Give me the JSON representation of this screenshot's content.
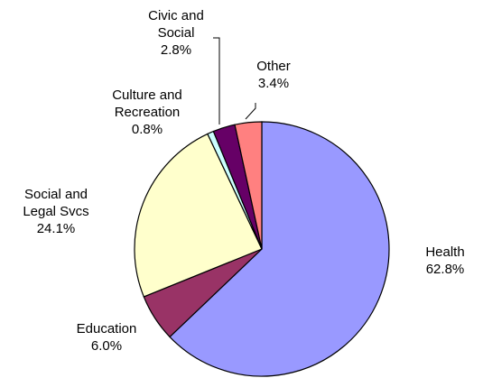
{
  "chart_data": {
    "type": "pie",
    "categories": [
      "Health",
      "Education",
      "Social and Legal Svcs",
      "Culture and Recreation",
      "Civic and Social",
      "Other"
    ],
    "values": [
      62.8,
      6.0,
      24.1,
      0.8,
      2.8,
      3.4
    ],
    "value_labels": [
      "62.8%",
      "6.0%",
      "24.1%",
      "0.8%",
      "2.8%",
      "3.4%"
    ],
    "colors": [
      "#9999ff",
      "#993366",
      "#ffffcc",
      "#ccffff",
      "#660066",
      "#ff8080"
    ]
  }
}
